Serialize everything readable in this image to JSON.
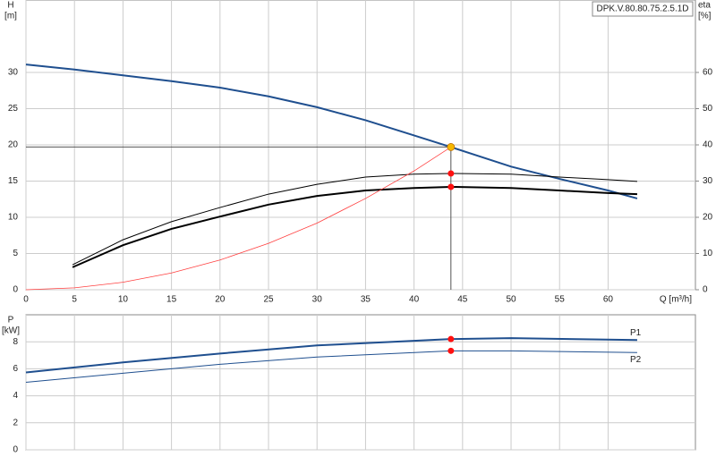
{
  "label": "DPK.V.80.80.75.2.5.1D",
  "chart_data": [
    {
      "type": "line",
      "y_label": "H",
      "y_unit": "[m]",
      "y2_label": "eta",
      "y2_unit": "[%]",
      "x_label": "Q [m³/h]",
      "xlim": [
        0,
        69
      ],
      "xticks": [
        0,
        5,
        10,
        15,
        20,
        25,
        30,
        35,
        40,
        45,
        50,
        55,
        60
      ],
      "ylim": [
        0,
        40
      ],
      "yticks": [
        0,
        5,
        10,
        15,
        20,
        25,
        30
      ],
      "y2lim": [
        0,
        80
      ],
      "y2ticks": [
        0,
        10,
        20,
        30,
        40,
        50,
        60
      ],
      "grid": true,
      "series": [
        {
          "color": "#1f4f8f",
          "width": 2,
          "x": [
            0,
            5,
            10,
            15,
            20,
            25,
            30,
            35,
            40,
            43.8,
            50,
            55,
            60,
            63
          ],
          "values": [
            31.1,
            30.4,
            29.6,
            28.8,
            27.9,
            26.7,
            25.2,
            23.4,
            21.3,
            19.7,
            17.0,
            15.3,
            13.7,
            12.6
          ]
        },
        {
          "color": "#000000",
          "width": 1,
          "axis": "y2",
          "x": [
            4.8,
            10,
            15,
            20,
            25,
            30,
            35,
            40,
            43.8,
            50,
            55,
            60,
            63
          ],
          "values": [
            6.9,
            13.8,
            18.8,
            22.7,
            26.4,
            29.1,
            31.1,
            31.9,
            32.1,
            31.9,
            31.1,
            30.4,
            29.9
          ]
        },
        {
          "color": "#000000",
          "width": 2,
          "axis": "y2",
          "x": [
            4.8,
            10,
            15,
            20,
            25,
            30,
            35,
            40,
            43.8,
            50,
            55,
            60,
            63
          ],
          "values": [
            6.2,
            12.3,
            16.8,
            20.2,
            23.5,
            25.9,
            27.4,
            28.1,
            28.4,
            28.1,
            27.4,
            26.7,
            26.4
          ]
        },
        {
          "color": "#ff4040",
          "width": 0.8,
          "x": [
            0,
            5,
            10,
            15,
            20,
            25,
            30,
            35,
            40,
            43.8
          ],
          "values": [
            0,
            0.26,
            1.03,
            2.31,
            4.1,
            6.4,
            9.2,
            12.6,
            16.4,
            19.7
          ]
        }
      ],
      "operating_point": {
        "x": 43.8,
        "y": 19.7,
        "color": "#f5b800"
      },
      "points": [
        {
          "x": 43.8,
          "y": 32.1,
          "axis": "y2",
          "color": "#ff1010"
        },
        {
          "x": 43.8,
          "y": 28.4,
          "axis": "y2",
          "color": "#ff1010"
        }
      ]
    },
    {
      "type": "line",
      "y_label": "P",
      "y_unit": "[kW]",
      "xlim": [
        0,
        69
      ],
      "xgrid": [
        0,
        5,
        10,
        15,
        20,
        25,
        30,
        35,
        40,
        45,
        50,
        55,
        60
      ],
      "ylim": [
        0,
        10
      ],
      "yticks": [
        0,
        2,
        4,
        6,
        8
      ],
      "grid": true,
      "series": [
        {
          "name": "P1",
          "color": "#1f4f8f",
          "width": 2,
          "x": [
            0,
            10,
            20,
            30,
            43.8,
            50,
            63
          ],
          "values": [
            5.73,
            6.47,
            7.13,
            7.73,
            8.2,
            8.27,
            8.13
          ]
        },
        {
          "name": "P2",
          "color": "#1f4f8f",
          "width": 1,
          "x": [
            0,
            10,
            20,
            30,
            43.8,
            50,
            63
          ],
          "values": [
            5.0,
            5.67,
            6.33,
            6.87,
            7.33,
            7.33,
            7.2
          ]
        }
      ],
      "points": [
        {
          "x": 43.8,
          "y": 8.2,
          "color": "#ff1010"
        },
        {
          "x": 43.8,
          "y": 7.33,
          "color": "#ff1010"
        }
      ]
    }
  ]
}
